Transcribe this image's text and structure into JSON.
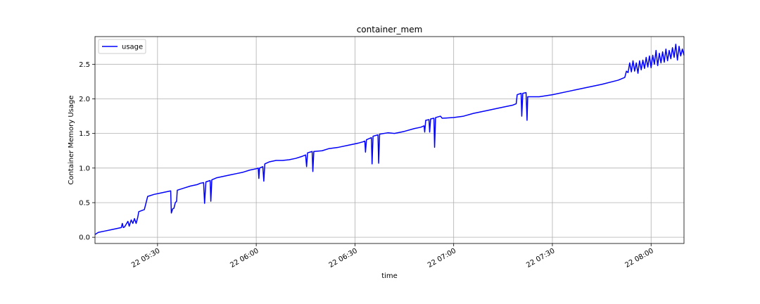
{
  "chart_data": {
    "type": "line",
    "title": "container_mem",
    "xlabel": "time",
    "ylabel": "Container Memory Usage",
    "xlim": [
      "05:11",
      "08:10"
    ],
    "ylim": [
      -0.09,
      2.9
    ],
    "xticks": [
      {
        "t": "05:30",
        "label": "22 05:30"
      },
      {
        "t": "06:00",
        "label": "22 06:00"
      },
      {
        "t": "06:30",
        "label": "22 06:30"
      },
      {
        "t": "07:00",
        "label": "22 07:00"
      },
      {
        "t": "07:30",
        "label": "22 07:30"
      },
      {
        "t": "08:00",
        "label": "22 08:00"
      }
    ],
    "yticks": [
      0.0,
      0.5,
      1.0,
      1.5,
      2.0,
      2.5
    ],
    "ytick_labels": [
      "0.0",
      "0.5",
      "1.0",
      "1.5",
      "2.0",
      "2.5"
    ],
    "grid": true,
    "legend": {
      "position": "upper-left"
    },
    "series": [
      {
        "name": "usage",
        "color": "#0000ff",
        "points": [
          [
            "05:11",
            0.04
          ],
          [
            "05:12",
            0.07
          ],
          [
            "05:14",
            0.09
          ],
          [
            "05:16",
            0.11
          ],
          [
            "05:18",
            0.13
          ],
          [
            "05:19",
            0.14
          ],
          [
            "05:19.3",
            0.2
          ],
          [
            "05:19.6",
            0.14
          ],
          [
            "05:20",
            0.15
          ],
          [
            "05:21",
            0.23
          ],
          [
            "05:21.4",
            0.16
          ],
          [
            "05:22",
            0.25
          ],
          [
            "05:22.5",
            0.2
          ],
          [
            "05:23",
            0.27
          ],
          [
            "05:23.5",
            0.2
          ],
          [
            "05:24",
            0.29
          ],
          [
            "05:24.3",
            0.37
          ],
          [
            "05:26",
            0.4
          ],
          [
            "05:27",
            0.59
          ],
          [
            "05:29",
            0.62
          ],
          [
            "05:31",
            0.64
          ],
          [
            "05:33",
            0.66
          ],
          [
            "05:34",
            0.67
          ],
          [
            "05:34.2",
            0.35
          ],
          [
            "05:34.6",
            0.41
          ],
          [
            "05:35",
            0.42
          ],
          [
            "05:35.4",
            0.5
          ],
          [
            "05:35.8",
            0.52
          ],
          [
            "05:36",
            0.68
          ],
          [
            "05:38",
            0.71
          ],
          [
            "05:40",
            0.74
          ],
          [
            "05:42",
            0.76
          ],
          [
            "05:43",
            0.78
          ],
          [
            "05:44",
            0.79
          ],
          [
            "05:44.3",
            0.49
          ],
          [
            "05:44.7",
            0.8
          ],
          [
            "05:46",
            0.82
          ],
          [
            "05:46.2",
            0.52
          ],
          [
            "05:46.5",
            0.83
          ],
          [
            "05:48",
            0.86
          ],
          [
            "05:50",
            0.88
          ],
          [
            "05:52",
            0.9
          ],
          [
            "05:54",
            0.92
          ],
          [
            "05:56",
            0.94
          ],
          [
            "05:58",
            0.97
          ],
          [
            "06:00",
            0.99
          ],
          [
            "06:00.6",
            1.0
          ],
          [
            "06:00.8",
            0.85
          ],
          [
            "06:01",
            1.0
          ],
          [
            "06:02",
            1.02
          ],
          [
            "06:02.3",
            0.81
          ],
          [
            "06:02.6",
            1.06
          ],
          [
            "06:04",
            1.09
          ],
          [
            "06:06",
            1.11
          ],
          [
            "06:08",
            1.11
          ],
          [
            "06:10",
            1.12
          ],
          [
            "06:12",
            1.14
          ],
          [
            "06:14",
            1.17
          ],
          [
            "06:15",
            1.19
          ],
          [
            "06:15.3",
            1.02
          ],
          [
            "06:15.6",
            1.22
          ],
          [
            "06:17",
            1.24
          ],
          [
            "06:17.2",
            0.95
          ],
          [
            "06:17.5",
            1.24
          ],
          [
            "06:20",
            1.25
          ],
          [
            "06:22",
            1.28
          ],
          [
            "06:25",
            1.3
          ],
          [
            "06:28",
            1.33
          ],
          [
            "06:31",
            1.36
          ],
          [
            "06:32.5",
            1.38
          ],
          [
            "06:33",
            1.39
          ],
          [
            "06:33.2",
            1.23
          ],
          [
            "06:33.5",
            1.41
          ],
          [
            "06:35",
            1.44
          ],
          [
            "06:35.2",
            1.06
          ],
          [
            "06:35.5",
            1.46
          ],
          [
            "06:37",
            1.48
          ],
          [
            "06:37.2",
            1.07
          ],
          [
            "06:37.5",
            1.49
          ],
          [
            "06:40",
            1.51
          ],
          [
            "06:42",
            1.5
          ],
          [
            "06:45",
            1.53
          ],
          [
            "06:48",
            1.57
          ],
          [
            "06:50",
            1.59
          ],
          [
            "06:51",
            1.61
          ],
          [
            "06:51.2",
            1.52
          ],
          [
            "06:51.5",
            1.69
          ],
          [
            "06:52.5",
            1.7
          ],
          [
            "06:52.7",
            1.52
          ],
          [
            "06:53",
            1.71
          ],
          [
            "06:54",
            1.72
          ],
          [
            "06:54.2",
            1.3
          ],
          [
            "06:54.5",
            1.73
          ],
          [
            "06:56",
            1.75
          ],
          [
            "06:56.5",
            1.72
          ],
          [
            "07:00",
            1.73
          ],
          [
            "07:03",
            1.75
          ],
          [
            "07:06",
            1.79
          ],
          [
            "07:10",
            1.83
          ],
          [
            "07:14",
            1.87
          ],
          [
            "07:18",
            1.91
          ],
          [
            "07:19",
            1.93
          ],
          [
            "07:19.3",
            2.06
          ],
          [
            "07:20.5",
            2.08
          ],
          [
            "07:20.7",
            1.75
          ],
          [
            "07:21",
            2.08
          ],
          [
            "07:22",
            2.09
          ],
          [
            "07:22.3",
            1.69
          ],
          [
            "07:22.5",
            2.03
          ],
          [
            "07:26",
            2.03
          ],
          [
            "07:30",
            2.06
          ],
          [
            "07:35",
            2.11
          ],
          [
            "07:40",
            2.16
          ],
          [
            "07:45",
            2.21
          ],
          [
            "07:50",
            2.27
          ],
          [
            "07:52",
            2.31
          ],
          [
            "07:52.5",
            2.4
          ],
          [
            "07:53",
            2.38
          ],
          [
            "07:53.5",
            2.52
          ],
          [
            "07:54",
            2.39
          ],
          [
            "07:54.5",
            2.55
          ],
          [
            "07:55",
            2.4
          ],
          [
            "07:55.5",
            2.52
          ],
          [
            "07:56",
            2.37
          ],
          [
            "07:56.5",
            2.55
          ],
          [
            "07:57",
            2.42
          ],
          [
            "07:57.5",
            2.56
          ],
          [
            "07:58",
            2.44
          ],
          [
            "07:58.5",
            2.6
          ],
          [
            "07:59",
            2.46
          ],
          [
            "07:59.5",
            2.62
          ],
          [
            "08:00",
            2.45
          ],
          [
            "08:00.5",
            2.63
          ],
          [
            "08:01",
            2.5
          ],
          [
            "08:01.5",
            2.7
          ],
          [
            "08:02",
            2.48
          ],
          [
            "08:02.5",
            2.66
          ],
          [
            "08:03",
            2.52
          ],
          [
            "08:03.5",
            2.68
          ],
          [
            "08:04",
            2.53
          ],
          [
            "08:04.5",
            2.72
          ],
          [
            "08:05",
            2.55
          ],
          [
            "08:05.5",
            2.7
          ],
          [
            "08:06",
            2.58
          ],
          [
            "08:06.5",
            2.74
          ],
          [
            "08:07",
            2.6
          ],
          [
            "08:07.5",
            2.79
          ],
          [
            "08:08",
            2.56
          ],
          [
            "08:08.5",
            2.76
          ],
          [
            "08:09",
            2.62
          ],
          [
            "08:09.5",
            2.72
          ],
          [
            "08:10",
            2.63
          ]
        ]
      }
    ]
  }
}
